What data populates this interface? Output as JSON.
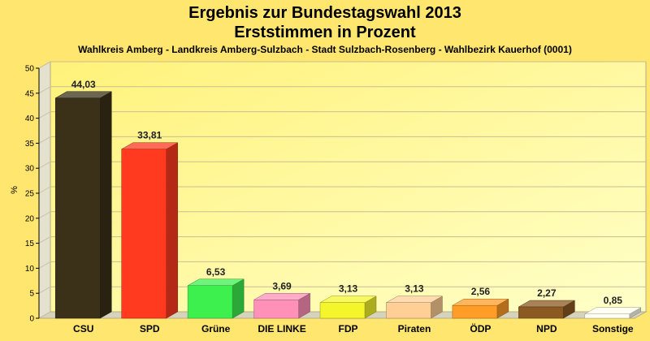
{
  "title": "Ergebnis zur Bundestagswahl 2013",
  "title2": "Erststimmen in Prozent",
  "subtitle": "Wahlkreis Amberg - Landkreis Amberg-Sulzbach - Stadt Sulzbach-Rosenberg - Wahlbezirk Kauerhof (0001)",
  "colors": {
    "page_background": "#ffe66e",
    "plot_background_top": "#fff27a",
    "plot_background_bottom": "#ffffc8",
    "grid": "#c9bd93"
  },
  "chart_data": {
    "type": "bar",
    "title": "Ergebnis zur Bundestagswahl 2013",
    "subtitle": "Erststimmen in Prozent",
    "xlabel": "",
    "ylabel": "%",
    "ylim": [
      0,
      50
    ],
    "yticks": [
      "0",
      "5",
      "10",
      "15",
      "20",
      "25",
      "30",
      "35",
      "40",
      "45",
      "50"
    ],
    "grid": true,
    "categories": [
      "CSU",
      "SPD",
      "Grüne",
      "DIE LINKE",
      "FDP",
      "Piraten",
      "ÖDP",
      "NPD",
      "Sonstige"
    ],
    "values": [
      44.03,
      33.81,
      6.53,
      3.69,
      3.13,
      3.13,
      2.56,
      2.27,
      0.85
    ],
    "value_labels": [
      "44,03",
      "33,81",
      "6,53",
      "3,69",
      "3,13",
      "3,13",
      "2,56",
      "2,27",
      "0,85"
    ],
    "bar_colors": [
      "#3a3118",
      "#ff3a1f",
      "#3ef04e",
      "#ff90b8",
      "#f5f52c",
      "#ffcf95",
      "#ff9d26",
      "#8b5a22",
      "#fffff0"
    ]
  }
}
